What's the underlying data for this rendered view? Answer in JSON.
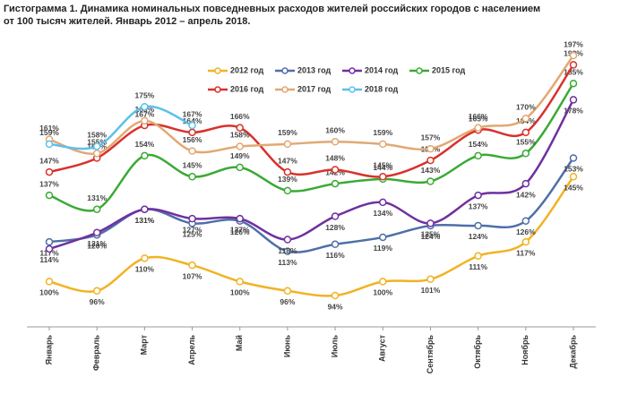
{
  "chart_data": {
    "type": "line",
    "title": "Гистограмма 1. Динамика номинальных повседневных расходов жителей российских городов с населением",
    "subtitle": "от 100 тысяч жителей. Январь 2012 – апрель 2018.",
    "categories": [
      "Январь",
      "Февраль",
      "Март",
      "Апрель",
      "Май",
      "Июнь",
      "Июль",
      "Август",
      "Сентябрь",
      "Октябрь",
      "Ноябрь",
      "Декабрь"
    ],
    "series": [
      {
        "name": "2012 год",
        "color": "#f0b323",
        "values": [
          100,
          96,
          110,
          107,
          100,
          96,
          94,
          100,
          101,
          111,
          117,
          145
        ],
        "value_labels": [
          "100%",
          "96%",
          "110%",
          "107%",
          "100%",
          "96%",
          "94%",
          "100%",
          "101%",
          "111%",
          "117%",
          "145%"
        ]
      },
      {
        "name": "2013 год",
        "color": "#4f6fa8",
        "values": [
          117,
          120,
          131,
          125,
          126,
          113,
          116,
          119,
          124,
          124,
          126,
          153
        ],
        "value_labels": [
          "117%",
          "120%",
          "131%",
          "125%",
          "126%",
          "113%",
          "116%",
          "119%",
          "124%",
          "124%",
          "126%",
          "153%"
        ]
      },
      {
        "name": "2014 год",
        "color": "#7030a0",
        "values": [
          114,
          121,
          131,
          127,
          127,
          118,
          128,
          134,
          125,
          137,
          142,
          178
        ],
        "value_labels": [
          "114%",
          "121%",
          "131%",
          "127%",
          "127%",
          "118%",
          "128%",
          "134%",
          "125%",
          "137%",
          "142%",
          "178%"
        ]
      },
      {
        "name": "2015 год",
        "color": "#3aaa35",
        "values": [
          137,
          131,
          154,
          145,
          149,
          139,
          142,
          144,
          143,
          154,
          155,
          185
        ],
        "value_labels": [
          "137%",
          "131%",
          "154%",
          "145%",
          "149%",
          "139%",
          "142%",
          "144%",
          "143%",
          "154%",
          "155%",
          "185%"
        ]
      },
      {
        "name": "2016 год",
        "color": "#d9312b",
        "values": [
          147,
          153,
          167,
          164,
          166,
          147,
          148,
          145,
          152,
          165,
          164,
          193
        ],
        "value_labels": [
          "147%",
          "153%",
          "167%",
          "164%",
          "166%",
          "147%",
          "148%",
          "145%",
          "152%",
          "165%",
          "164%",
          "193%"
        ]
      },
      {
        "name": "2017 год",
        "color": "#e2a873",
        "values": [
          161,
          155,
          169,
          156,
          158,
          159,
          160,
          159,
          157,
          166,
          170,
          197
        ],
        "value_labels": [
          "161%",
          "155%",
          "169%",
          "156%",
          "158%",
          "159%",
          "160%",
          "159%",
          "157%",
          "166%",
          "170%",
          "197%"
        ]
      },
      {
        "name": "2018 год",
        "color": "#5bc0eb",
        "values": [
          159,
          158,
          175,
          167,
          null,
          null,
          null,
          null,
          null,
          null,
          null,
          null
        ],
        "value_labels": [
          "159%",
          "158%",
          "175%",
          "167%",
          null,
          null,
          null,
          null,
          null,
          null,
          null,
          null
        ]
      }
    ]
  }
}
